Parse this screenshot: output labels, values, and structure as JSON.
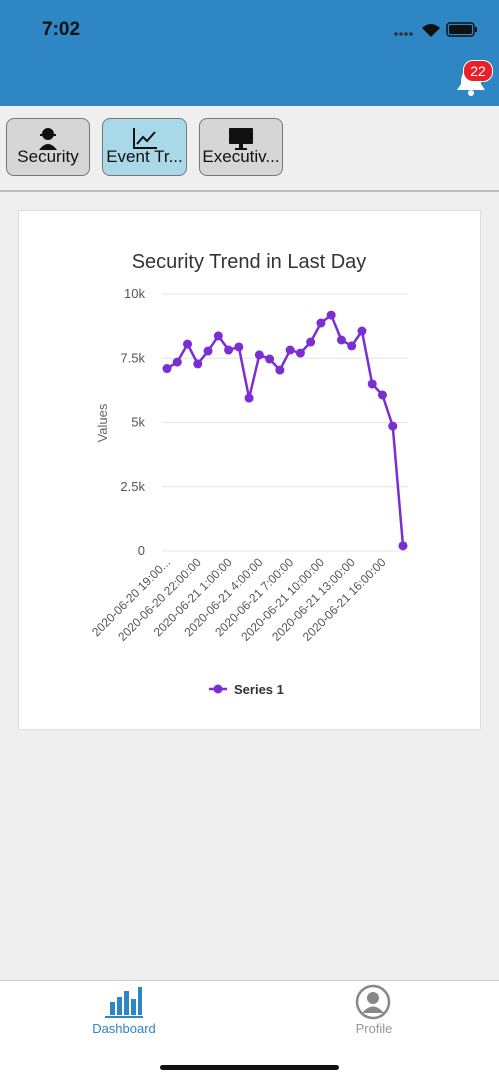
{
  "status_bar": {
    "time": "7:02"
  },
  "header": {
    "notification_count": "22"
  },
  "tabs": [
    "Security",
    "Event Tr...",
    "Executiv..."
  ],
  "chart_data": {
    "type": "line",
    "title": "Security Trend in Last Day",
    "y_label": "Values",
    "categories": [
      "2020-06-20 19:00...",
      null,
      null,
      "2020-06-20 22:00:00",
      null,
      null,
      "2020-06-21 1:00:00",
      null,
      null,
      "2020-06-21 4:00:00",
      null,
      null,
      "2020-06-21 7:00:00",
      null,
      null,
      "2020-06-21 10:00:00",
      null,
      null,
      "2020-06-21 13:00:00",
      null,
      null,
      "2020-06-21 16:00:00",
      null,
      null
    ],
    "series": [
      {
        "name": "Series 1",
        "color": "#7b2fd0",
        "values": [
          7100,
          7350,
          8050,
          7280,
          7780,
          8370,
          7820,
          7940,
          5950,
          7630,
          7470,
          7040,
          7820,
          7700,
          8130,
          8870,
          9180,
          8210,
          7980,
          8560,
          6500,
          6070,
          4860,
          200
        ]
      }
    ],
    "ylim": [
      0,
      10000
    ],
    "yticks": [
      0,
      {
        "value": 2500,
        "label": "2.5k"
      },
      {
        "value": 5000,
        "label": "5k"
      },
      {
        "value": 7500,
        "label": "7.5k"
      },
      {
        "value": 10000,
        "label": "10k"
      }
    ],
    "grid": true,
    "legend": "bottom"
  },
  "bottom_nav": [
    "Dashboard",
    "Profile"
  ]
}
